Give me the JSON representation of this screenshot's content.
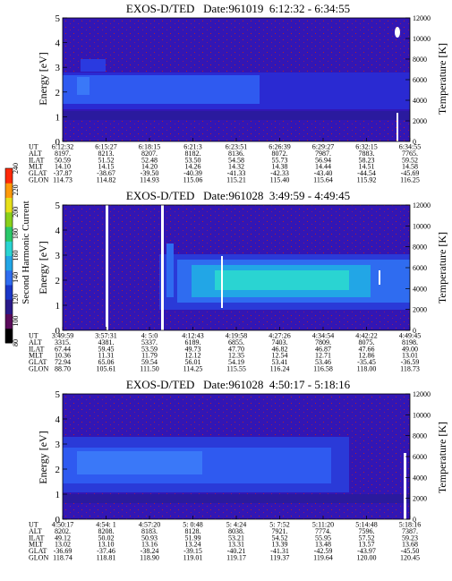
{
  "colorbar": {
    "title": "Second Harmonic Current",
    "ticks": [
      "80",
      "100",
      "120",
      "140",
      "160",
      "180",
      "200",
      "220",
      "240"
    ],
    "colors": [
      "#000000",
      "#5a0a5a",
      "#2a1a8a",
      "#1a36c8",
      "#2f6cf0",
      "#22a6e6",
      "#2ad4d2",
      "#2ac86a",
      "#8ad01a",
      "#e6e01a",
      "#ff9a0a",
      "#ff2a0a"
    ]
  },
  "chart_data": [
    {
      "type": "heatmap",
      "title": "EXOS-D/TED   Date:961019  6:12:32 - 6:34:55",
      "ylabel": "Energy [eV]",
      "ylabel_right": "Temperature [K]",
      "yticks": [
        "0",
        "1",
        "2",
        "3",
        "4",
        "5"
      ],
      "yticks_right": [
        "0",
        "2000",
        "4000",
        "6000",
        "8000",
        "10000",
        "12000"
      ],
      "ylim": [
        0,
        5
      ],
      "ylim_right": [
        0,
        12000
      ],
      "orbit_table": {
        "row_labels": [
          "UT",
          "ALT",
          "ILAT",
          "MLT",
          "GLAT",
          "GLON"
        ],
        "columns": [
          [
            "6:12:32",
            "8197.",
            "50.59",
            "14.10",
            "-37.87",
            "114.73"
          ],
          [
            "6:15:27",
            "8213.",
            "51.52",
            "14.15",
            "-38.67",
            "114.82"
          ],
          [
            "6:18:15",
            "8207.",
            "52.48",
            "14.20",
            "-39.50",
            "114.93"
          ],
          [
            "6:21:3",
            "8182.",
            "53.50",
            "14.26",
            "-40.39",
            "115.06"
          ],
          [
            "6:23:51",
            "8136.",
            "54.58",
            "14.32",
            "-41.33",
            "115.21"
          ],
          [
            "6:26:39",
            "8072.",
            "55.73",
            "14.38",
            "-42.33",
            "115.40"
          ],
          [
            "6:29:27",
            "7987.",
            "56.94",
            "14.44",
            "-43.40",
            "115.64"
          ],
          [
            "6:32:15",
            "7883.",
            "58.23",
            "14.51",
            "-44.54",
            "115.92"
          ],
          [
            "6:34:55",
            "7765.",
            "59.52",
            "14.58",
            "-45.69",
            "116.25"
          ]
        ]
      }
    },
    {
      "type": "heatmap",
      "title": "EXOS-D/TED   Date:961028  3:49:59 - 4:49:45",
      "ylabel": "Energy [eV]",
      "ylabel_right": "Temperature [K]",
      "yticks": [
        "0",
        "1",
        "2",
        "3",
        "4",
        "5"
      ],
      "yticks_right": [
        "0",
        "2000",
        "4000",
        "6000",
        "8000",
        "10000",
        "12000"
      ],
      "ylim": [
        0,
        5
      ],
      "ylim_right": [
        0,
        12000
      ],
      "orbit_table": {
        "row_labels": [
          "UT",
          "ALT",
          "ILAT",
          "MLT",
          "GLAT",
          "GLON"
        ],
        "columns": [
          [
            "3:49:59",
            "3315.",
            "67.44",
            "10.36",
            "72.94",
            "88.70"
          ],
          [
            "3:57:31",
            "4381.",
            "59.45",
            "11.31",
            "65.06",
            "105.61"
          ],
          [
            "4: 5:0",
            "5337.",
            "53.59",
            "11.79",
            "59.54",
            "111.50"
          ],
          [
            "4:12:43",
            "6189.",
            "49.73",
            "12.12",
            "56.01",
            "114.25"
          ],
          [
            "4:19:58",
            "6855.",
            "47.70",
            "12.35",
            "54.19",
            "115.55"
          ],
          [
            "4:27:26",
            "7403.",
            "46.82",
            "12.54",
            "53.41",
            "116.24"
          ],
          [
            "4:34:54",
            "7809.",
            "46.87",
            "12.71",
            "53.46",
            "116.58"
          ],
          [
            "4:42:22",
            "8075.",
            "47.66",
            "12.86",
            "-35.45",
            "118.00"
          ],
          [
            "4:49:45",
            "8198.",
            "49.00",
            "13.01",
            "-36.59",
            "118.73"
          ]
        ]
      }
    },
    {
      "type": "heatmap",
      "title": "EXOS-D/TED   Date:961028  4:50:17 - 5:18:16",
      "ylabel": "Energy [eV]",
      "ylabel_right": "Temperature [K]",
      "yticks": [
        "0",
        "1",
        "2",
        "3",
        "4",
        "5"
      ],
      "yticks_right": [
        "0",
        "2000",
        "4000",
        "6000",
        "8000",
        "10000",
        "12000"
      ],
      "ylim": [
        0,
        5
      ],
      "ylim_right": [
        0,
        12000
      ],
      "orbit_table": {
        "row_labels": [
          "UT",
          "ALT",
          "ILAT",
          "MLT",
          "GLAT",
          "GLON"
        ],
        "columns": [
          [
            "4:50:17",
            "8202.",
            "49.12",
            "13.02",
            "-36.69",
            "118.74"
          ],
          [
            "4:54: 1",
            "8208.",
            "50.02",
            "13.10",
            "-37.46",
            "118.81"
          ],
          [
            "4:57:20",
            "8183.",
            "50.93",
            "13.16",
            "-38.24",
            "118.90"
          ],
          [
            "5: 0:48",
            "8128.",
            "51.99",
            "13.24",
            "-39.15",
            "119.01"
          ],
          [
            "5: 4:24",
            "8038.",
            "53.21",
            "13.31",
            "-40.21",
            "119.17"
          ],
          [
            "5: 7:52",
            "7921.",
            "54.52",
            "13.39",
            "-41.31",
            "119.37"
          ],
          [
            "5:11:20",
            "7774.",
            "55.95",
            "13.48",
            "-42.59",
            "119.64"
          ],
          [
            "5:14:48",
            "7596.",
            "57.52",
            "13.57",
            "-43.97",
            "120.00"
          ],
          [
            "5:18:16",
            "7387.",
            "59.23",
            "13.68",
            "-45.50",
            "120.45"
          ]
        ]
      }
    }
  ]
}
